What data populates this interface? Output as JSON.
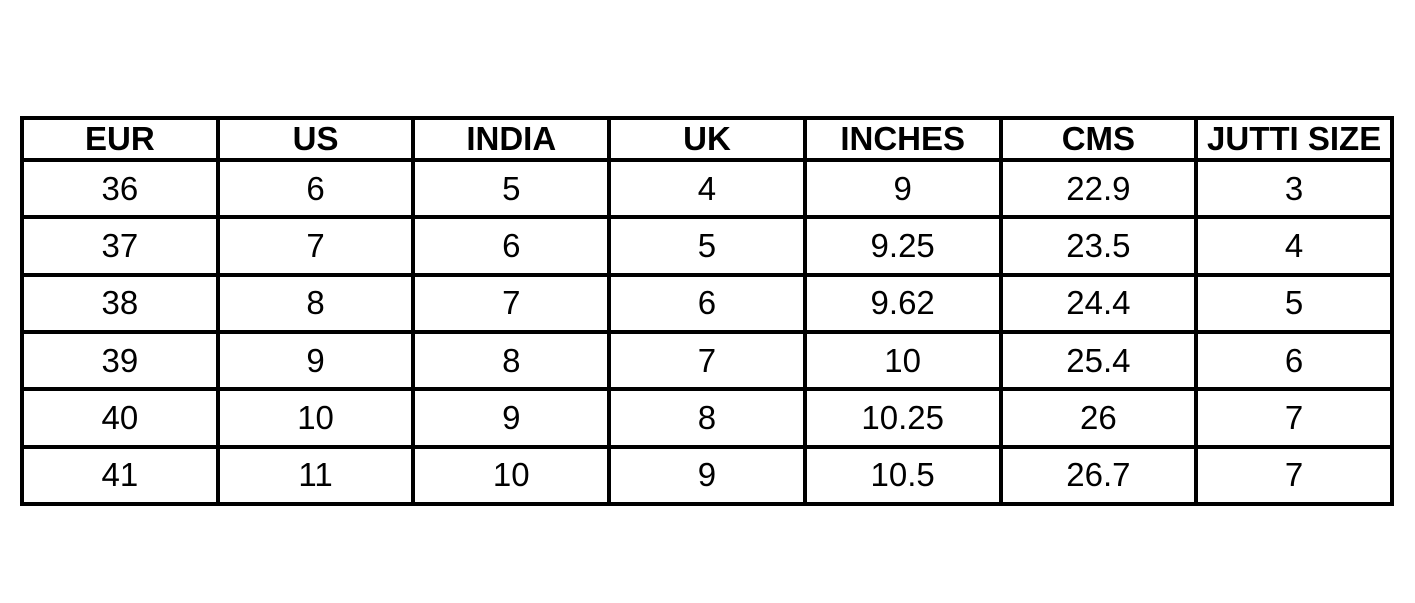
{
  "table": {
    "header": [
      "EUR",
      "US",
      "INDIA",
      "UK",
      "INCHES",
      "CMS",
      "JUTTI SIZE"
    ],
    "rows": [
      [
        "36",
        "6",
        "5",
        "4",
        "9",
        "22.9",
        "3"
      ],
      [
        "37",
        "7",
        "6",
        "5",
        "9.25",
        "23.5",
        "4"
      ],
      [
        "38",
        "8",
        "7",
        "6",
        "9.62",
        "24.4",
        "5"
      ],
      [
        "39",
        "9",
        "8",
        "7",
        "10",
        "25.4",
        "6"
      ],
      [
        "40",
        "10",
        "9",
        "8",
        "10.25",
        "26",
        "7"
      ],
      [
        "41",
        "11",
        "10",
        "9",
        "10.5",
        "26.7",
        "7"
      ]
    ]
  }
}
